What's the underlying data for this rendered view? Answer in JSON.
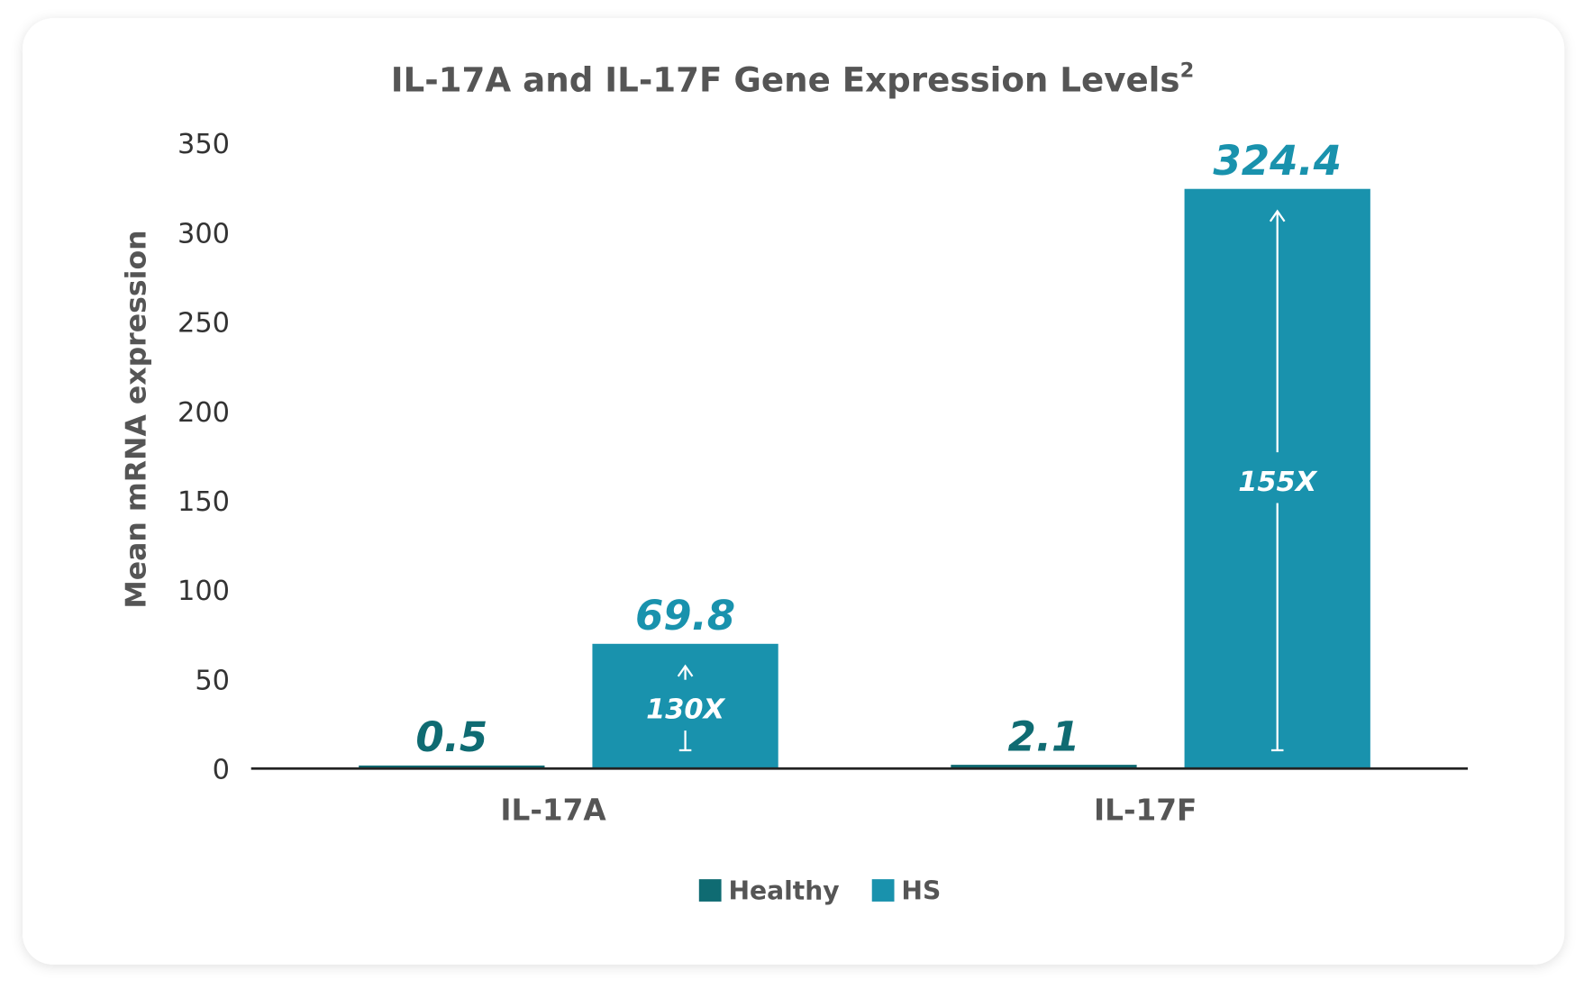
{
  "chart_data": {
    "type": "bar",
    "title": "IL-17A and IL-17F Gene Expression Levels",
    "title_superscript": "2",
    "xlabel": "",
    "ylabel": "Mean mRNA expression",
    "ylim": [
      0,
      350
    ],
    "yticks": [
      0,
      50,
      100,
      150,
      200,
      250,
      300,
      350
    ],
    "grid": false,
    "legend_placement": "bottom",
    "categories": [
      "IL-17A",
      "IL-17F"
    ],
    "series": [
      {
        "name": "Healthy",
        "color": "#0f6b72",
        "values": [
          0.5,
          2.1
        ],
        "labels": [
          "0.5",
          "2.1"
        ]
      },
      {
        "name": "HS",
        "color": "#1992ad",
        "values": [
          69.8,
          324.4
        ],
        "labels": [
          "69.8",
          "324.4"
        ]
      }
    ],
    "annotations": [
      "130X",
      "155X"
    ]
  }
}
